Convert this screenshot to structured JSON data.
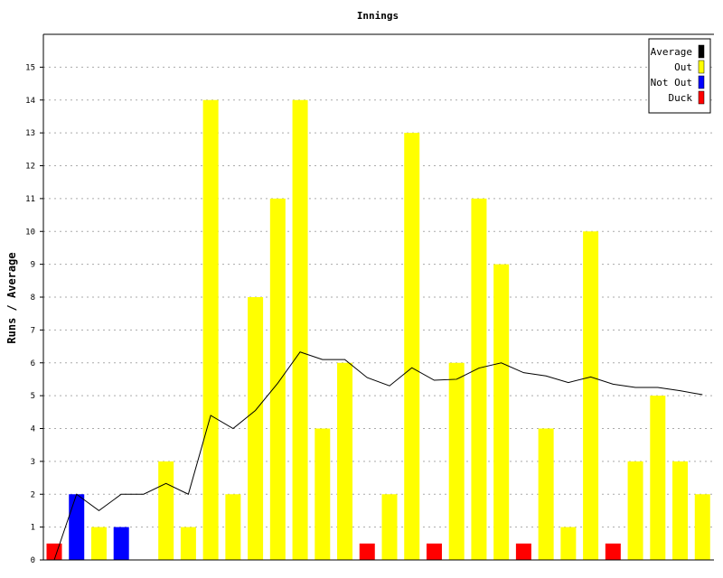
{
  "chart_data": {
    "type": "bar",
    "title": "Innings",
    "xlabel": "",
    "ylabel": "Runs / Average",
    "ylim": [
      0,
      16
    ],
    "yticks": [
      0,
      1,
      2,
      3,
      4,
      5,
      6,
      7,
      8,
      9,
      10,
      11,
      12,
      13,
      14,
      15
    ],
    "grid": "horizontal dashed",
    "legend_position": "top-right",
    "colors": {
      "Out": "#ffff00",
      "Not Out": "#0000ff",
      "Duck": "#ff0000",
      "Average": "#000000"
    },
    "series": [
      {
        "name": "Runs",
        "values": [
          0.5,
          2,
          1,
          1,
          null,
          3,
          1,
          14,
          2,
          8,
          11,
          14,
          4,
          6,
          0.5,
          2,
          13,
          0.5,
          6,
          11,
          9,
          0.5,
          4,
          1,
          10,
          0.5,
          3,
          5,
          3,
          2
        ],
        "status": [
          "Duck",
          "Not Out",
          "Out",
          "Not Out",
          "",
          "Out",
          "Out",
          "Out",
          "Out",
          "Out",
          "Out",
          "Out",
          "Out",
          "Out",
          "Duck",
          "Out",
          "Out",
          "Duck",
          "Out",
          "Out",
          "Out",
          "Duck",
          "Out",
          "Out",
          "Out",
          "Duck",
          "Out",
          "Out",
          "Out",
          "Out"
        ]
      },
      {
        "name": "Average",
        "type": "line",
        "values": [
          0,
          2,
          1.5,
          2,
          2,
          2.33,
          2,
          4.4,
          4,
          4.55,
          5.38,
          6.33,
          6.1,
          6.1,
          5.55,
          5.3,
          5.85,
          5.47,
          5.5,
          5.84,
          6,
          5.7,
          5.6,
          5.4,
          5.57,
          5.35,
          5.25,
          5.25,
          5.15,
          5.03
        ]
      }
    ],
    "legend": [
      "Average",
      "Out",
      "Not Out",
      "Duck"
    ]
  }
}
